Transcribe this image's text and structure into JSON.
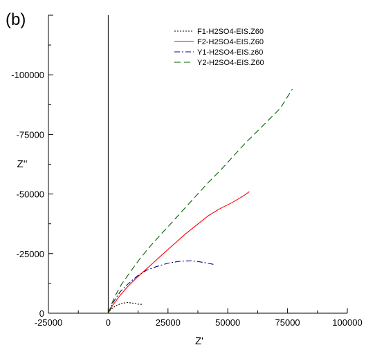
{
  "panel_label": "(b)",
  "chart_data": {
    "type": "line",
    "title": "",
    "xlabel": "Z'",
    "ylabel": "Z''",
    "xlim": [
      -25000,
      100000
    ],
    "ylim": [
      0,
      -125000
    ],
    "x_ticks": [
      -25000,
      0,
      25000,
      50000,
      75000,
      100000
    ],
    "x_tick_labels": [
      "-25000",
      "0",
      "25000",
      "50000",
      "75000",
      "100000"
    ],
    "y_ticks": [
      0,
      -25000,
      -50000,
      -75000,
      -100000
    ],
    "y_tick_labels": [
      "0",
      "-25000",
      "-50000",
      "-75000",
      "-100000"
    ],
    "grid": false,
    "legend_position": "top-right",
    "series": [
      {
        "name": "F1-H2SO4-EIS.Z60",
        "color": "#000000",
        "dash": "dotted",
        "x": [
          0,
          800,
          2000,
          3500,
          5500,
          8000,
          10500,
          12500,
          14000
        ],
        "y": [
          0,
          -1200,
          -2300,
          -3300,
          -4100,
          -4500,
          -4200,
          -3800,
          -3700
        ]
      },
      {
        "name": "F2-H2SO4-EIS.Z60",
        "color": "#ff0000",
        "dash": "solid",
        "x": [
          0,
          2000,
          5000,
          8000,
          12000,
          17000,
          22000,
          27000,
          32000,
          37000,
          42000,
          47000,
          52000,
          57000,
          59000
        ],
        "y": [
          0,
          -3500,
          -7500,
          -11000,
          -15000,
          -19500,
          -24000,
          -28500,
          -33000,
          -37000,
          -41000,
          -44000,
          -46500,
          -49500,
          -51000
        ]
      },
      {
        "name": "Y1-H2SO4-EIS.z60",
        "color": "#00008b",
        "dash": "dashdot",
        "x": [
          0,
          2000,
          5000,
          8000,
          12000,
          16000,
          20000,
          25000,
          30000,
          35000,
          40000,
          44000
        ],
        "y": [
          0,
          -4500,
          -9000,
          -12000,
          -15500,
          -18000,
          -19500,
          -21000,
          -21800,
          -22000,
          -21300,
          -20500
        ]
      },
      {
        "name": "Y2-H2SO4-EIS.Z60",
        "color": "#006400",
        "dash": "dashed",
        "x": [
          0,
          2500,
          5500,
          9000,
          13000,
          17000,
          22000,
          27000,
          32000,
          37000,
          42000,
          47000,
          52000,
          57000,
          62000,
          67000,
          72000,
          77000
        ],
        "y": [
          0,
          -6500,
          -12000,
          -17000,
          -22500,
          -27500,
          -33000,
          -38500,
          -44000,
          -49500,
          -55000,
          -60000,
          -65500,
          -71000,
          -76000,
          -81000,
          -86000,
          -94000
        ]
      }
    ]
  }
}
